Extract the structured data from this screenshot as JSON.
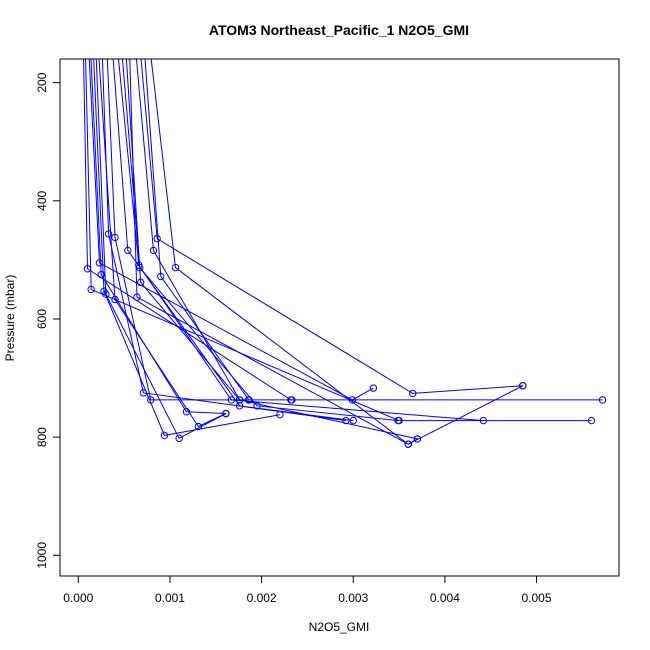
{
  "chart_data": {
    "type": "line",
    "title": "ATOM3 Northeast_Pacific_1 N2O5_GMI",
    "xlabel": "N2O5_GMI",
    "ylabel": "Pressure (mbar)",
    "xlim": [
      -0.0002,
      0.0059
    ],
    "ylim": [
      1035,
      160
    ],
    "y_inverted": true,
    "grid": false,
    "line_color": "#0000ff",
    "xticks": [
      0.0,
      0.001,
      0.002,
      0.003,
      0.004,
      0.005
    ],
    "xtick_labels": [
      "0.000",
      "0.001",
      "0.002",
      "0.003",
      "0.004",
      "0.005"
    ],
    "yticks": [
      200,
      400,
      600,
      800,
      1000
    ],
    "ytick_labels": [
      "200",
      "400",
      "600",
      "800",
      "1000"
    ],
    "series": [
      {
        "points": [
          [
            5e-05,
            100
          ],
          [
            0.0001,
            515
          ],
          [
            0.00232,
            737
          ],
          [
            0.00572,
            737
          ]
        ]
      },
      {
        "points": [
          [
            7e-05,
            100
          ],
          [
            0.00014,
            550
          ],
          [
            0.0035,
            772
          ],
          [
            0.0056,
            772
          ]
        ]
      },
      {
        "points": [
          [
            0.0001,
            100
          ],
          [
            0.00023,
            505
          ],
          [
            0.00299,
            737
          ],
          [
            0.00322,
            717
          ]
        ]
      },
      {
        "points": [
          [
            0.00012,
            100
          ],
          [
            0.00025,
            525
          ],
          [
            0.00118,
            757
          ],
          [
            0.00161,
            760
          ]
        ]
      },
      {
        "points": [
          [
            0.00015,
            100
          ],
          [
            0.00028,
            553
          ],
          [
            0.00094,
            797
          ],
          [
            0.0022,
            762
          ]
        ]
      },
      {
        "points": [
          [
            0.00018,
            100
          ],
          [
            0.0003,
            558
          ],
          [
            0.0011,
            802
          ],
          [
            0.00161,
            760
          ]
        ]
      },
      {
        "points": [
          [
            0.0002,
            100
          ],
          [
            0.0004,
            567
          ],
          [
            0.00131,
            782
          ],
          [
            0.00161,
            760
          ]
        ]
      },
      {
        "points": [
          [
            0.00025,
            100
          ],
          [
            0.00033,
            456
          ],
          [
            0.00071,
            725
          ],
          [
            0.00292,
            772
          ]
        ]
      },
      {
        "points": [
          [
            0.0003,
            100
          ],
          [
            0.0004,
            462
          ],
          [
            0.00079,
            737
          ],
          [
            0.00186,
            737
          ]
        ]
      },
      {
        "points": [
          [
            0.00035,
            100
          ],
          [
            0.00054,
            484
          ],
          [
            0.00176,
            747
          ],
          [
            0.003,
            772
          ]
        ]
      },
      {
        "points": [
          [
            0.0004,
            100
          ],
          [
            0.00066,
            509
          ],
          [
            0.00167,
            737
          ],
          [
            0.00442,
            772
          ]
        ]
      },
      {
        "points": [
          [
            0.00045,
            100
          ],
          [
            0.00067,
            513
          ],
          [
            0.00195,
            747
          ],
          [
            0.00349,
            772
          ]
        ]
      },
      {
        "points": [
          [
            0.0005,
            100
          ],
          [
            0.00068,
            538
          ],
          [
            0.00176,
            737
          ],
          [
            0.00186,
            737
          ]
        ]
      },
      {
        "points": [
          [
            0.00055,
            100
          ],
          [
            0.00064,
            563
          ],
          [
            0.0036,
            812
          ],
          [
            0.00485,
            713
          ]
        ]
      },
      {
        "points": [
          [
            0.0006,
            100
          ],
          [
            0.00082,
            484
          ],
          [
            0.00176,
            737
          ],
          [
            0.0037,
            803
          ]
        ]
      },
      {
        "points": [
          [
            0.00065,
            100
          ],
          [
            0.00086,
            464
          ],
          [
            0.00365,
            726
          ],
          [
            0.00485,
            713
          ]
        ]
      },
      {
        "points": [
          [
            0.0007,
            100
          ],
          [
            0.0009,
            528
          ],
          [
            0.00186,
            737
          ],
          [
            0.00233,
            737
          ]
        ]
      },
      {
        "points": [
          [
            0.00075,
            100
          ],
          [
            0.00106,
            513
          ],
          [
            0.0036,
            812
          ],
          [
            0.0037,
            803
          ]
        ]
      }
    ]
  }
}
